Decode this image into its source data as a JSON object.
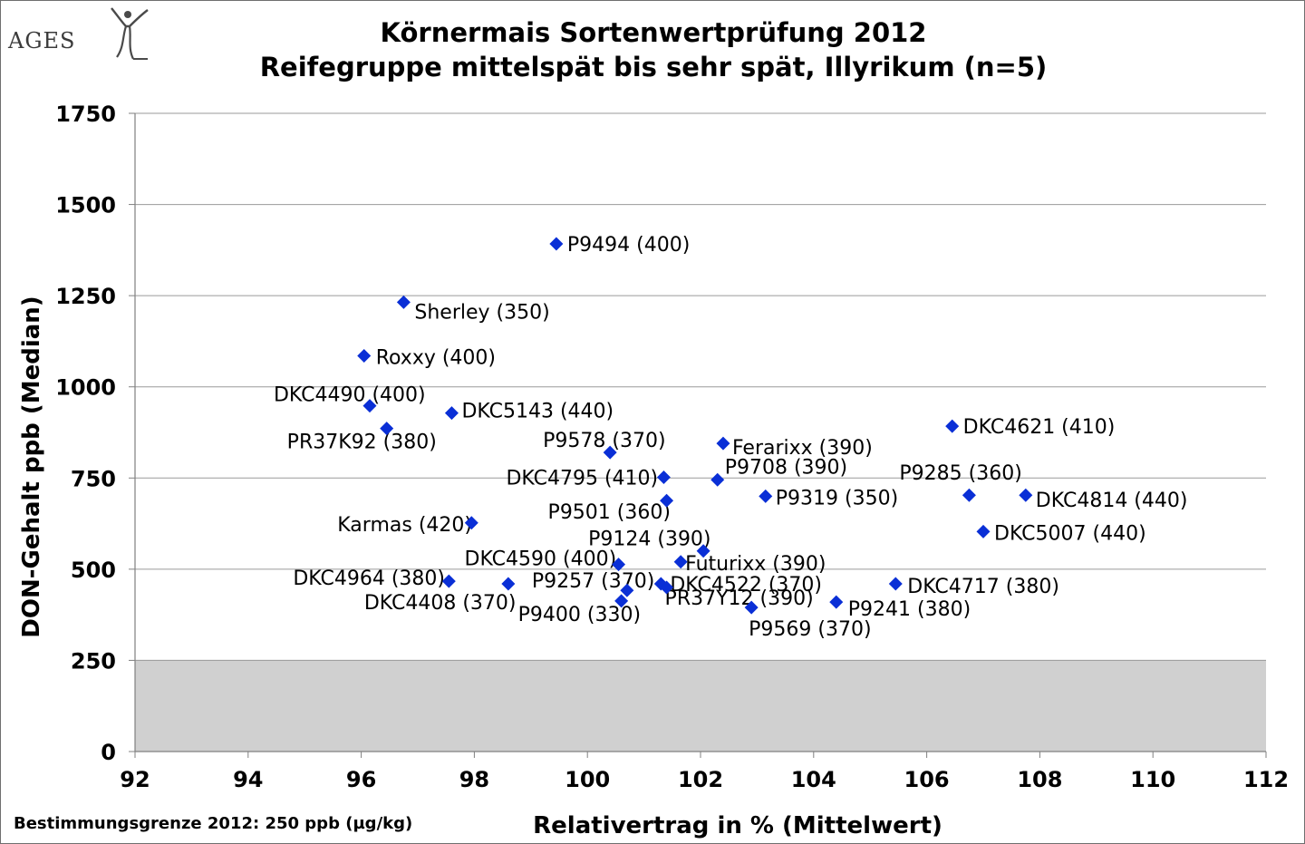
{
  "logo": {
    "text": "AGES"
  },
  "chart_data": {
    "type": "scatter",
    "title": "Körnermais Sortenwertprüfung 2012",
    "subtitle": "Reifegruppe mittelspät bis sehr spät, Illyrikum (n=5)",
    "xlabel": "Relativertrag  in % (Mittelwert)",
    "ylabel": "DON-Gehalt ppb (Median)",
    "xlim": [
      92,
      112
    ],
    "ylim": [
      0,
      1750
    ],
    "xticks": [
      92,
      94,
      96,
      98,
      100,
      102,
      104,
      106,
      108,
      110,
      112
    ],
    "yticks": [
      0,
      250,
      500,
      750,
      1000,
      1250,
      1500,
      1750
    ],
    "grid": "horizontal",
    "legend": "none",
    "marker": "diamond",
    "marker_color": "#0a2fd6",
    "limit_band": {
      "from": 0,
      "to": 250,
      "color": "#d0d0d0"
    },
    "footnote": "Bestimmungsgrenze 2012: 250 ppb (µg/kg)",
    "points": [
      {
        "label": "P9494 (400)",
        "x": 99.45,
        "y": 1392
      },
      {
        "label": "Sherley (350)",
        "x": 96.75,
        "y": 1232
      },
      {
        "label": "Roxxy (400)",
        "x": 96.05,
        "y": 1085
      },
      {
        "label": "DKC4490 (400)",
        "x": 96.15,
        "y": 948
      },
      {
        "label": "DKC5143 (440)",
        "x": 97.6,
        "y": 928
      },
      {
        "label": "PR37K92 (380)",
        "x": 96.45,
        "y": 886
      },
      {
        "label": "P9578 (370)",
        "x": 100.4,
        "y": 820
      },
      {
        "label": "Ferarixx (390)",
        "x": 102.4,
        "y": 845
      },
      {
        "label": "DKC4621 (410)",
        "x": 106.45,
        "y": 892
      },
      {
        "label": "P9708 (390)",
        "x": 102.3,
        "y": 745
      },
      {
        "label": "DKC4795 (410)",
        "x": 101.35,
        "y": 752
      },
      {
        "label": "P9285 (360)",
        "x": 106.75,
        "y": 703
      },
      {
        "label": "DKC4814 (440)",
        "x": 107.75,
        "y": 703
      },
      {
        "label": "P9319 (350)",
        "x": 103.15,
        "y": 700
      },
      {
        "label": "P9501 (360)",
        "x": 101.4,
        "y": 688
      },
      {
        "label": "Karmas (420)",
        "x": 97.95,
        "y": 627
      },
      {
        "label": "DKC5007 (440)",
        "x": 107.0,
        "y": 603
      },
      {
        "label": "P9124 (390)",
        "x": 102.05,
        "y": 550
      },
      {
        "label": "DKC4590 (400)",
        "x": 100.55,
        "y": 513
      },
      {
        "label": "Futurixx (390)",
        "x": 101.65,
        "y": 520
      },
      {
        "label": "DKC4964 (380)",
        "x": 97.55,
        "y": 467
      },
      {
        "label": "DKC4408 (370)",
        "x": 98.6,
        "y": 460
      },
      {
        "label": "P9257 (370)",
        "x": 100.7,
        "y": 442
      },
      {
        "label": "P9400 (330)",
        "x": 100.6,
        "y": 413
      },
      {
        "label": "DKC4522 (370)",
        "x": 101.3,
        "y": 460
      },
      {
        "label": "PR37Y12 (390)",
        "x": 101.4,
        "y": 450
      },
      {
        "label": "P9569 (370)",
        "x": 102.9,
        "y": 395
      },
      {
        "label": "P9241 (380)",
        "x": 104.4,
        "y": 410
      },
      {
        "label": "DKC4717 (380)",
        "x": 105.45,
        "y": 460
      }
    ]
  }
}
